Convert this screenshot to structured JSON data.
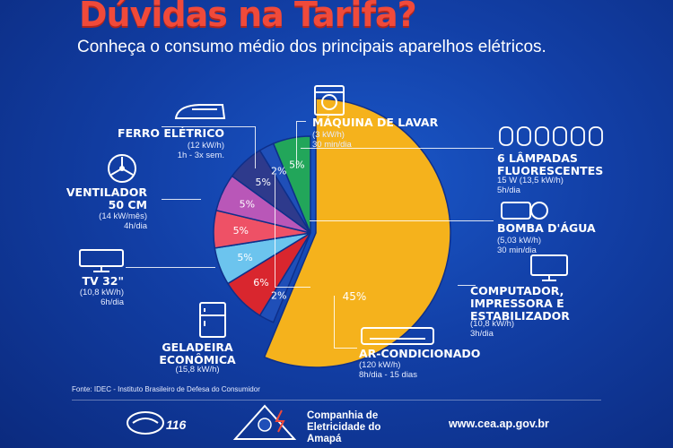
{
  "header": {
    "title": "Dúvidas na Tarifa?",
    "subtitle": "Conheça o consumo médio dos principais aparelhos elétricos."
  },
  "appliances": {
    "ferro": {
      "name": "FERRO ELÉTRICO",
      "detail": "(12 kW/h)\n1h - 3x sem."
    },
    "ventilador": {
      "name": "VENTILADOR\n50 CM",
      "detail": "(14 kW/mês)\n4h/dia"
    },
    "tv": {
      "name": "TV 32\"",
      "detail": "(10,8 kW/h)\n6h/dia"
    },
    "geladeira": {
      "name": "GELADEIRA\nECONÔMICA",
      "detail": "(15,8 kW/h)"
    },
    "maquina": {
      "name": "MÁQUINA DE LAVAR",
      "detail": "(3 kW/h)\n30 min/dia"
    },
    "lampadas": {
      "name": "6 LÂMPADAS\nFLUORESCENTES",
      "detail": "15 W (13,5 kW/h)\n5h/dia"
    },
    "bomba": {
      "name": "BOMBA D'ÁGUA",
      "detail": "(5,03 kW/h)\n30 min/dia"
    },
    "computador": {
      "name": "COMPUTADOR,\nIMPRESSORA E\nESTABILIZADOR",
      "detail": "(10,8 kW/h)\n3h/dia"
    },
    "ar": {
      "name": "AR-CONDICIONADO",
      "detail": "(120 kW/h)\n8h/dia - 15 dias"
    }
  },
  "chart_data": {
    "type": "pie",
    "slices": [
      {
        "label": "45%",
        "value": 45,
        "color": "#f5b21c"
      },
      {
        "label": "2%",
        "value": 2,
        "color": "#1f4fb8"
      },
      {
        "label": "6%",
        "value": 6,
        "color": "#d9262e"
      },
      {
        "label": "5%",
        "value": 5,
        "color": "#6cc4ee"
      },
      {
        "label": "5%",
        "value": 5,
        "color": "#ee5166"
      },
      {
        "label": "5%",
        "value": 5,
        "color": "#b957b8"
      },
      {
        "label": "5%",
        "value": 5,
        "color": "#2e3a8c"
      },
      {
        "label": "2%",
        "value": 2,
        "color": "#1f4fb8"
      },
      {
        "label": "5%",
        "value": 5,
        "color": "#22a65a"
      }
    ]
  },
  "footer": {
    "source": "Fonte: IDEC - Instituto Brasileiro de Defesa do Consumidor",
    "hotline": "116",
    "company": "Companhia de\nEletricidade do\nAmapá",
    "website": "www.cea.ap.gov.br"
  },
  "colors": {
    "title": "#f04a3a",
    "background": "#123fa6"
  }
}
